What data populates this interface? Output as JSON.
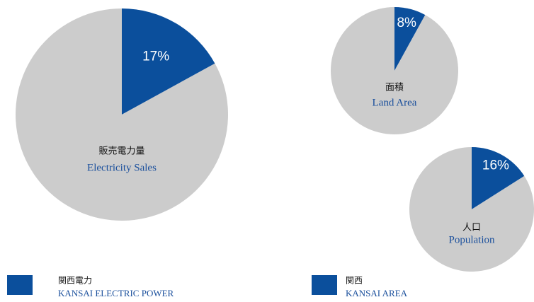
{
  "chart_data": [
    {
      "type": "pie",
      "title": "販売電力量",
      "subtitle": "Electricity Sales",
      "values": [
        17,
        83
      ],
      "value_labels": [
        "17%",
        null
      ],
      "colors": [
        "#0b4f9c",
        "#cccccc"
      ]
    },
    {
      "type": "pie",
      "title": "面積",
      "subtitle": "Land Area",
      "values": [
        8,
        92
      ],
      "value_labels": [
        "8%",
        null
      ],
      "colors": [
        "#0b4f9c",
        "#cccccc"
      ]
    },
    {
      "type": "pie",
      "title": "人口",
      "subtitle": "Population",
      "values": [
        16,
        84
      ],
      "value_labels": [
        "16%",
        null
      ],
      "colors": [
        "#0b4f9c",
        "#cccccc"
      ]
    }
  ],
  "legend": [
    {
      "label": "関西電力",
      "sublabel": "KANSAI ELECTRIC POWER",
      "color": "#0b4f9c"
    },
    {
      "label": "関西",
      "sublabel": "KANSAI AREA",
      "color": "#0b4f9c"
    }
  ]
}
